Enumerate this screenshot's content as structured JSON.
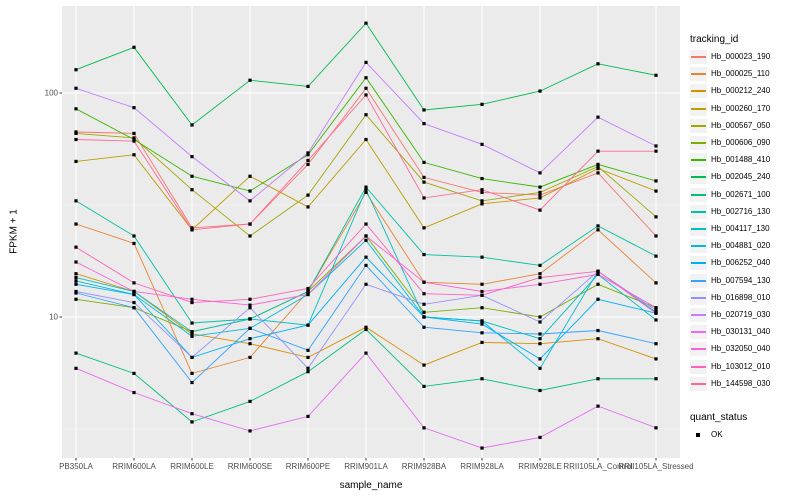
{
  "figure": {
    "y_axis": {
      "title": "FPKM + 1",
      "ticks": [
        {
          "label": "10",
          "value": 10
        },
        {
          "label": "100",
          "value": 100
        }
      ]
    },
    "x_axis": {
      "title": "sample_name"
    },
    "legend": {
      "tracking_title": "tracking_id",
      "quant_title": "quant_status",
      "quant_items": [
        {
          "label": "OK",
          "marker": "black-square"
        }
      ]
    },
    "colors": {
      "panel_bg": "#EBEBEB",
      "grid_major": "#FFFFFF",
      "grid_minor": "#FFFFFF",
      "axis_text": "#4D4D4D",
      "point": "#000000"
    }
  },
  "chart_data": {
    "type": "line",
    "title": "",
    "xlabel": "sample_name",
    "ylabel": "FPKM + 1",
    "y_scale": "log10",
    "ylim": [
      2.3,
      260
    ],
    "y_major_ticks": [
      10,
      100
    ],
    "y_minor_ticks": [
      3.162,
      31.62
    ],
    "grid": true,
    "legend_position": "right",
    "point_marker": "black-square",
    "categories": [
      "PB350LA",
      "RRIM600LA",
      "RRIM600LE",
      "RRIM600SE",
      "RRIM600PE",
      "RRIM901LA",
      "RRIM928BA",
      "RRIM928LA",
      "RRIM928LE",
      "RRII105LA_Control",
      "RRII105LA_Stressed"
    ],
    "series": [
      {
        "name": "Hb_000023_190",
        "color": "#F8766D",
        "values": [
          67,
          66,
          25,
          26,
          48,
          105,
          42,
          36,
          35,
          44,
          23
        ]
      },
      {
        "name": "Hb_000025_110",
        "color": "#EA8331",
        "values": [
          26,
          21.3,
          5.6,
          6.6,
          13,
          36,
          14.3,
          14,
          15.6,
          24.5,
          14.2
        ]
      },
      {
        "name": "Hb_000212_240",
        "color": "#D89000",
        "values": [
          15.6,
          13,
          8.4,
          7.6,
          6.6,
          9,
          6.1,
          7.7,
          7.6,
          8,
          6.5
        ]
      },
      {
        "name": "Hb_000260_170",
        "color": "#C09B00",
        "values": [
          49.5,
          53,
          24.5,
          42.5,
          31,
          62,
          25,
          32,
          34,
          46,
          36.5
        ]
      },
      {
        "name": "Hb_000567_050",
        "color": "#A3A500",
        "values": [
          66,
          63,
          37,
          23,
          35,
          80,
          40,
          33,
          36,
          47,
          28
        ]
      },
      {
        "name": "Hb_000606_090",
        "color": "#7CAE00",
        "values": [
          12,
          11,
          8.6,
          9.8,
          13,
          23,
          10.5,
          11,
          10,
          14,
          11
        ]
      },
      {
        "name": "Hb_001488_410",
        "color": "#39B600",
        "values": [
          85,
          62,
          42.5,
          36.5,
          53,
          117,
          49,
          41.5,
          38,
          48,
          40.5
        ]
      },
      {
        "name": "Hb_002045_240",
        "color": "#00BB4E",
        "values": [
          127,
          160,
          72,
          114,
          107,
          205,
          84,
          89,
          102,
          135,
          120
        ]
      },
      {
        "name": "Hb_002671_100",
        "color": "#00BF7D",
        "values": [
          6.9,
          5.6,
          3.4,
          4.2,
          5.7,
          8.8,
          4.9,
          5.3,
          4.7,
          5.3,
          5.3
        ]
      },
      {
        "name": "Hb_002716_130",
        "color": "#00C1A3",
        "values": [
          33,
          23,
          9.4,
          9.8,
          13,
          38,
          19,
          18.5,
          17,
          25.5,
          18.7
        ]
      },
      {
        "name": "Hb_004117_130",
        "color": "#00BFC4",
        "values": [
          15,
          13,
          8.6,
          9.8,
          9.2,
          37,
          10,
          9.6,
          8,
          15.5,
          9.7
        ]
      },
      {
        "name": "Hb_004881_020",
        "color": "#00BADE",
        "values": [
          14.5,
          12.6,
          8.2,
          8.9,
          12.6,
          22,
          10,
          9.6,
          5.9,
          16,
          10.5
        ]
      },
      {
        "name": "Hb_006252_040",
        "color": "#00B0F6",
        "values": [
          14,
          12.6,
          6.6,
          8,
          9.2,
          18.5,
          10,
          9.3,
          6.5,
          12,
          10.4
        ]
      },
      {
        "name": "Hb_007594_130",
        "color": "#35A2FF",
        "values": [
          12.8,
          11,
          5.1,
          8.9,
          7.1,
          17,
          9,
          8.5,
          8.4,
          8.7,
          7.6
        ]
      },
      {
        "name": "Hb_016898_010",
        "color": "#9590FF",
        "values": [
          13,
          11.6,
          6.6,
          11,
          5.9,
          14,
          11.4,
          12.5,
          9.5,
          16,
          10.7
        ]
      },
      {
        "name": "Hb_020719_030",
        "color": "#C77CFF",
        "values": [
          105,
          86,
          52,
          33,
          54,
          137,
          73,
          59,
          44,
          78,
          58
        ]
      },
      {
        "name": "Hb_030131_040",
        "color": "#E76BF3",
        "values": [
          5.9,
          4.6,
          3.7,
          3.1,
          3.6,
          6.9,
          3.2,
          2.6,
          2.9,
          4.0,
          3.2
        ]
      },
      {
        "name": "Hb_032050_040",
        "color": "#FA62DB",
        "values": [
          17.6,
          13,
          12,
          11.3,
          12.6,
          23,
          14.3,
          13,
          14,
          15.5,
          11
        ]
      },
      {
        "name": "Hb_103012_010",
        "color": "#FF62BC",
        "values": [
          20.5,
          14.2,
          11.6,
          12,
          13.4,
          26,
          12.7,
          12.5,
          15,
          16,
          10.4
        ]
      },
      {
        "name": "Hb_144598_030",
        "color": "#FF6A98",
        "values": [
          62,
          61,
          24.5,
          26,
          50,
          98,
          34,
          37,
          30,
          55,
          55
        ]
      }
    ]
  },
  "layout_note": ""
}
